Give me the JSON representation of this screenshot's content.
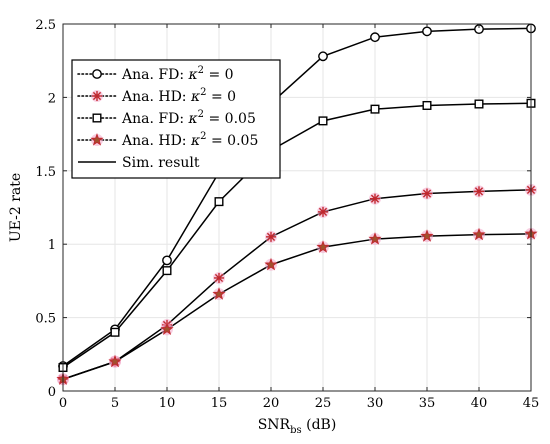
{
  "chart_data": {
    "type": "line",
    "title": "",
    "xlabel": "SNR",
    "xlabel_sub": "bs",
    "xlabel_unit": " (dB)",
    "ylabel": "UE-2 rate",
    "xlim": [
      0,
      45
    ],
    "ylim": [
      0,
      2.5
    ],
    "x_ticks": [
      0,
      5,
      10,
      15,
      20,
      25,
      30,
      35,
      40,
      45
    ],
    "y_ticks": [
      0,
      0.5,
      1,
      1.5,
      2,
      2.5
    ],
    "x_tick_labels": [
      "0",
      "5",
      "10",
      "15",
      "20",
      "25",
      "30",
      "35",
      "40",
      "45"
    ],
    "y_tick_labels": [
      "0",
      "0.5",
      "1",
      "1.5",
      "2",
      "2.5"
    ],
    "grid": true,
    "legend_position": "upper-left",
    "x": [
      0,
      5,
      10,
      15,
      20,
      25,
      30,
      35,
      40,
      45
    ],
    "series": [
      {
        "name": "Ana. FD: κ² = 0",
        "marker": "circle",
        "values": [
          0.17,
          0.42,
          0.89,
          1.49,
          1.96,
          2.28,
          2.41,
          2.45,
          2.465,
          2.47
        ]
      },
      {
        "name": "Ana. HD: κ² = 0",
        "marker": "asterisk",
        "values": [
          0.08,
          0.2,
          0.45,
          0.77,
          1.05,
          1.22,
          1.31,
          1.345,
          1.36,
          1.37
        ]
      },
      {
        "name": "Ana. FD: κ² = 0.05",
        "marker": "square",
        "values": [
          0.16,
          0.4,
          0.82,
          1.29,
          1.64,
          1.84,
          1.92,
          1.945,
          1.955,
          1.96
        ]
      },
      {
        "name": "Ana. HD: κ² = 0.05",
        "marker": "star",
        "values": [
          0.08,
          0.2,
          0.42,
          0.66,
          0.86,
          0.98,
          1.035,
          1.055,
          1.065,
          1.07
        ]
      }
    ],
    "legend": [
      {
        "label_prefix": "Ana. FD: ",
        "label_suffix": " = 0",
        "marker": "circle",
        "style": "dotted"
      },
      {
        "label_prefix": "Ana. HD: ",
        "label_suffix": " = 0",
        "marker": "asterisk",
        "style": "dotted"
      },
      {
        "label_prefix": "Ana. FD: ",
        "label_suffix": " = 0.05",
        "marker": "square",
        "style": "dotted"
      },
      {
        "label_prefix": "Ana. HD: ",
        "label_suffix": " = 0.05",
        "marker": "star",
        "style": "dotted"
      },
      {
        "label_prefix": "Sim. result",
        "label_suffix": "",
        "marker": "none",
        "style": "solid"
      }
    ],
    "colors": {
      "line": "#000000",
      "marker_hd": "#c0282f",
      "marker_hd_glow": "#f2a6c8",
      "grid": "#e6e6e6",
      "axis": "#262626"
    }
  }
}
